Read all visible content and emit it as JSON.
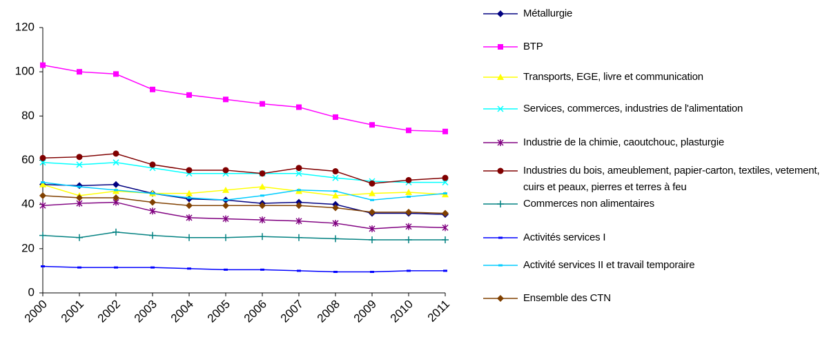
{
  "chart_data": {
    "type": "line",
    "categories": [
      "2000",
      "2001",
      "2002",
      "2003",
      "2004",
      "2005",
      "2006",
      "2007",
      "2008",
      "2009",
      "2010",
      "2011"
    ],
    "ylim": [
      0,
      120
    ],
    "yticks": [
      0,
      20,
      40,
      60,
      80,
      100,
      120
    ],
    "series": [
      {
        "name": "Métallurgie",
        "color": "#000080",
        "marker": "diamond",
        "values": [
          49,
          48.5,
          49,
          45,
          42.5,
          42,
          40.5,
          41,
          40,
          36,
          36,
          35.5
        ]
      },
      {
        "name": "BTP",
        "color": "#ff00ff",
        "marker": "square",
        "values": [
          103,
          100,
          99,
          92,
          89.5,
          87.5,
          85.5,
          84,
          79.5,
          76,
          73.5,
          73
        ]
      },
      {
        "name": "Transports, EGE, livre et communication",
        "color": "#ffff00",
        "marker": "triangle",
        "values": [
          49,
          44,
          46,
          45,
          45,
          46.5,
          48,
          46,
          44,
          45,
          45.5,
          44.5
        ]
      },
      {
        "name": "Services, commerces, industries de l'alimentation",
        "color": "#00ffff",
        "marker": "x",
        "values": [
          59,
          58,
          59,
          56.5,
          54,
          54,
          54,
          54,
          52,
          50.5,
          50,
          50
        ]
      },
      {
        "name": "Industrie de la chimie, caoutchouc, plasturgie",
        "color": "#800080",
        "marker": "star",
        "values": [
          39.5,
          40.5,
          41,
          37,
          34,
          33.5,
          33,
          32.5,
          31.5,
          29,
          30,
          29.5
        ]
      },
      {
        "name": "Industries du bois, ameublement, papier-carton, textiles, vetement, cuirs et peaux, pierres et terres à feu",
        "color": "#800000",
        "marker": "circle",
        "values": [
          61,
          61.5,
          63,
          58,
          55.5,
          55.5,
          54,
          56.5,
          55,
          49.5,
          51,
          52
        ]
      },
      {
        "name": "Commerces non alimentaires",
        "color": "#008080",
        "marker": "plus",
        "values": [
          26,
          25,
          27.5,
          26,
          25,
          25,
          25.5,
          25,
          24.5,
          24,
          24,
          24
        ]
      },
      {
        "name": "Activités services I",
        "color": "#0000ff",
        "marker": "dash",
        "values": [
          12,
          11.5,
          11.5,
          11.5,
          11,
          10.5,
          10.5,
          10,
          9.5,
          9.5,
          10,
          10
        ]
      },
      {
        "name": "Activité services II et travail temporaire",
        "color": "#00ccff",
        "marker": "dash",
        "values": [
          50,
          48,
          46.5,
          45,
          43,
          42,
          44,
          46.5,
          46,
          42,
          43.5,
          45
        ]
      },
      {
        "name": "Ensemble des CTN",
        "color": "#804000",
        "marker": "diamond",
        "values": [
          44,
          43,
          43,
          41,
          39.5,
          39.5,
          39.5,
          39.5,
          38.5,
          36.5,
          36.5,
          36
        ]
      }
    ]
  }
}
